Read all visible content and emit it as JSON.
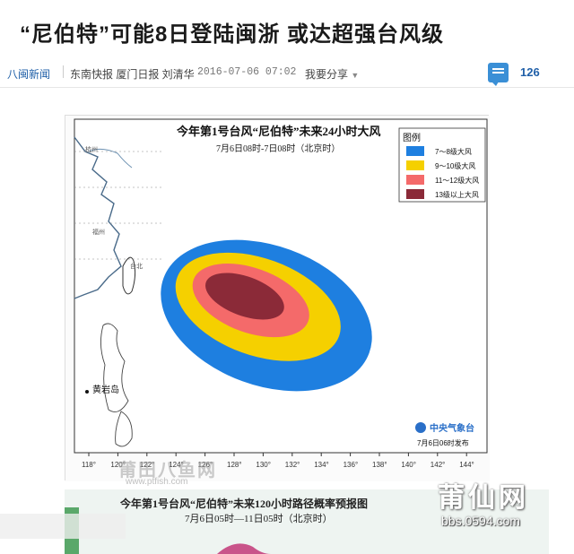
{
  "article": {
    "title": "“尼伯特”可能8日登陆闽浙 或达超强台风级",
    "source": "八闽新闻",
    "authors": "东南快报 厦门日报 刘清华",
    "datetime": "2016-07-06 07:02",
    "share_label": "我要分享",
    "comment_count": "126"
  },
  "map1": {
    "title": "今年第1号台风“尼伯特”未来24小时大风",
    "subtitle": "7月6日08时-7日08时（北京时）",
    "legend_title": "图例",
    "legend": [
      {
        "label": "7～8级大风",
        "color": "#1e7fe0"
      },
      {
        "label": "9～10级大风",
        "color": "#f5d000"
      },
      {
        "label": "11～12级大风",
        "color": "#f46a6a"
      },
      {
        "label": "13级以上大风",
        "color": "#8b2a38"
      }
    ],
    "place_label": "黄岩岛",
    "city_labels": [
      "杭州",
      "福州",
      "台北"
    ],
    "agency": "中央气象台",
    "issue_time": "7月6日06时发布",
    "lon_ticks": [
      "118°",
      "120°",
      "122°",
      "124°",
      "126°",
      "128°",
      "130°",
      "132°",
      "134°",
      "136°",
      "138°",
      "140°",
      "142°",
      "144°"
    ]
  },
  "map2": {
    "title": "今年第1号台风“尼伯特”未来120小时路径概率预报图",
    "subtitle": "7月6日05时—11日05时（北京时）"
  },
  "watermarks": {
    "left_text": "莆田八鱼网",
    "left_url": "www.ptfish.com",
    "right_text": "莆仙网",
    "right_url": "bbs.0594.com"
  }
}
